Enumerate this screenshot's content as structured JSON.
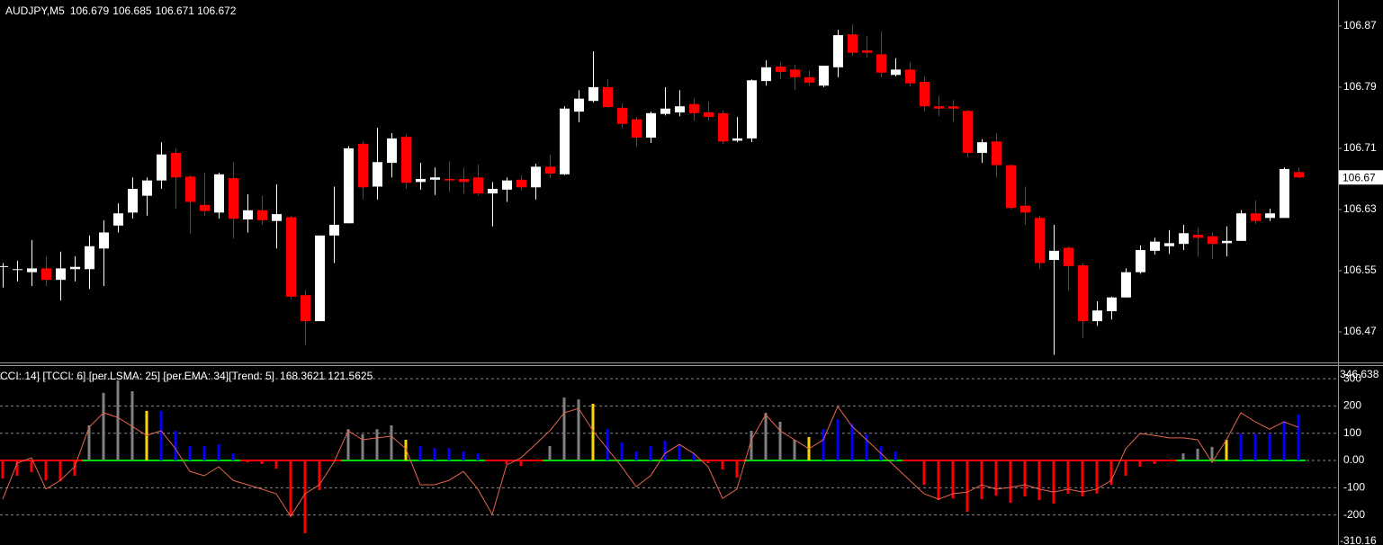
{
  "chart_data": [
    {
      "type": "candlestick",
      "title": "AUDJPY,M5",
      "open": [
        106.555,
        106.551,
        106.548,
        106.553,
        106.538,
        106.552,
        106.552,
        106.579,
        106.609,
        106.626,
        106.648,
        106.668,
        106.704,
        106.673,
        106.636,
        106.626,
        106.671,
        106.617,
        106.629,
        106.615,
        106.62,
        106.518,
        106.484,
        106.596,
        106.612,
        106.716,
        106.66,
        106.691,
        106.725,
        106.666,
        106.669,
        106.67,
        106.67,
        106.672,
        106.651,
        106.656,
        106.669,
        106.659,
        106.686,
        106.676,
        106.758,
        106.772,
        106.79,
        106.763,
        106.748,
        106.724,
        106.755,
        106.757,
        106.768,
        106.757,
        106.756,
        106.72,
        106.723,
        106.798,
        106.817,
        106.813,
        106.803,
        106.792,
        106.816,
        106.859,
        106.838,
        106.833,
        106.806,
        106.813,
        106.797,
        106.765,
        106.765,
        106.759,
        106.704,
        106.719,
        106.688,
        106.635,
        106.619,
        106.564,
        106.58,
        106.557,
        106.484,
        106.497,
        106.515,
        106.548,
        106.576,
        106.582,
        106.585,
        106.597,
        106.595,
        106.586,
        106.589,
        106.625,
        106.619,
        106.619,
        106.679
      ],
      "high": [
        106.56,
        106.563,
        106.59,
        106.569,
        106.575,
        106.569,
        106.596,
        106.616,
        106.638,
        106.672,
        106.672,
        106.718,
        106.71,
        106.675,
        106.678,
        106.678,
        106.692,
        106.65,
        106.648,
        106.663,
        106.622,
        106.525,
        106.596,
        106.66,
        106.713,
        106.719,
        106.737,
        106.73,
        106.728,
        106.691,
        106.685,
        106.693,
        106.685,
        106.689,
        106.666,
        106.672,
        106.675,
        106.69,
        106.702,
        106.765,
        106.786,
        106.837,
        106.8,
        106.769,
        106.751,
        106.758,
        106.79,
        106.786,
        106.775,
        106.771,
        106.759,
        106.751,
        106.8,
        106.825,
        106.823,
        106.819,
        106.812,
        106.818,
        106.865,
        106.872,
        106.857,
        106.863,
        106.828,
        106.823,
        106.804,
        106.779,
        106.773,
        106.76,
        106.722,
        106.73,
        106.689,
        106.66,
        106.622,
        106.61,
        106.582,
        106.56,
        106.51,
        106.516,
        106.553,
        106.583,
        106.593,
        106.603,
        106.61,
        106.606,
        106.6,
        106.608,
        106.629,
        106.642,
        106.631,
        106.685,
        106.685
      ],
      "low": [
        106.528,
        106.536,
        106.53,
        106.53,
        106.511,
        106.536,
        106.526,
        106.53,
        106.6,
        106.618,
        106.622,
        106.657,
        106.631,
        106.598,
        106.622,
        106.618,
        106.592,
        106.6,
        106.61,
        106.579,
        106.513,
        106.453,
        106.484,
        106.56,
        106.612,
        106.643,
        106.643,
        106.672,
        106.657,
        106.656,
        106.649,
        106.653,
        106.651,
        106.648,
        106.608,
        106.64,
        106.655,
        106.643,
        106.671,
        106.675,
        106.744,
        106.77,
        106.763,
        106.736,
        106.712,
        106.717,
        106.753,
        106.752,
        106.746,
        106.746,
        106.716,
        106.718,
        106.718,
        106.792,
        106.8,
        106.786,
        106.792,
        106.79,
        106.803,
        106.831,
        106.829,
        106.803,
        106.804,
        106.791,
        106.758,
        106.752,
        106.745,
        106.698,
        106.691,
        106.672,
        106.63,
        106.61,
        106.553,
        106.44,
        106.524,
        106.462,
        106.478,
        106.486,
        106.515,
        106.546,
        106.571,
        106.572,
        106.577,
        106.568,
        106.565,
        106.569,
        106.589,
        106.611,
        106.615,
        106.619,
        106.671
      ],
      "close": [
        106.556,
        106.552,
        106.553,
        106.538,
        106.553,
        106.555,
        106.582,
        106.6,
        106.625,
        106.657,
        106.668,
        106.702,
        106.672,
        106.64,
        106.628,
        106.676,
        106.618,
        106.629,
        106.616,
        106.624,
        106.516,
        106.484,
        106.596,
        106.61,
        106.71,
        106.659,
        106.692,
        106.723,
        106.665,
        106.67,
        106.672,
        106.668,
        106.666,
        106.651,
        106.657,
        106.668,
        106.659,
        106.686,
        106.677,
        106.762,
        106.775,
        106.79,
        106.764,
        106.742,
        106.724,
        106.756,
        106.762,
        106.765,
        106.756,
        106.751,
        106.719,
        106.723,
        106.799,
        106.816,
        106.81,
        106.803,
        106.796,
        106.818,
        106.858,
        106.835,
        106.835,
        106.809,
        106.813,
        106.795,
        106.765,
        106.762,
        106.762,
        106.704,
        106.718,
        106.688,
        106.632,
        106.626,
        106.56,
        106.576,
        106.556,
        106.484,
        106.498,
        106.515,
        106.548,
        106.577,
        106.588,
        106.586,
        106.599,
        106.593,
        106.585,
        106.589,
        106.625,
        106.615,
        106.625,
        106.683,
        106.672
      ],
      "up_color": "#ffffff",
      "down_color": "#ff0000",
      "ylim": [
        106.43,
        106.904
      ],
      "yticks": [
        106.47,
        106.55,
        106.63,
        106.71,
        106.79,
        106.87
      ],
      "last_price": {
        "value": 106.672,
        "label": "106.67"
      }
    },
    {
      "type": "oscillator",
      "title": "CCI: 14] [TCCI: 6] [per.LSMA: 25] [per.EMA: 34][Trend: 5]",
      "values": [
        -66,
        -56,
        -43,
        -73,
        -76,
        -56,
        129,
        248,
        294,
        254,
        182,
        182,
        109,
        53,
        53,
        59,
        26,
        -7,
        -13,
        -30,
        -205,
        -267,
        -109,
        0,
        115,
        96,
        115,
        129,
        76,
        53,
        46,
        46,
        33,
        26,
        0,
        -13,
        -20,
        0,
        53,
        231,
        224,
        208,
        115,
        66,
        33,
        53,
        73,
        59,
        26,
        -10,
        -33,
        -63,
        109,
        175,
        142,
        76,
        86,
        115,
        152,
        135,
        96,
        53,
        33,
        0,
        -89,
        -145,
        -139,
        -188,
        -142,
        -129,
        -155,
        -132,
        -145,
        -158,
        -122,
        -132,
        -122,
        -89,
        -56,
        -23,
        -13,
        0,
        26,
        43,
        50,
        76,
        99,
        99,
        99,
        145,
        168.3621
      ],
      "colors": [
        "#ff0000",
        "#ff0000",
        "#ff0000",
        "#ff0000",
        "#ff0000",
        "#ff0000",
        "#808080",
        "#808080",
        "#808080",
        "#808080",
        "#ffd700",
        "#0000ff",
        "#0000ff",
        "#0000ff",
        "#0000ff",
        "#0000ff",
        "#0000ff",
        "#ff0000",
        "#ff0000",
        "#ff0000",
        "#ff0000",
        "#ff0000",
        "#ff0000",
        "#ff0000",
        "#808080",
        "#808080",
        "#808080",
        "#808080",
        "#ffd700",
        "#0000ff",
        "#0000ff",
        "#0000ff",
        "#0000ff",
        "#0000ff",
        "#ff0000",
        "#ff0000",
        "#ff0000",
        "#ff0000",
        "#808080",
        "#808080",
        "#808080",
        "#ffd700",
        "#0000ff",
        "#0000ff",
        "#0000ff",
        "#0000ff",
        "#0000ff",
        "#0000ff",
        "#0000ff",
        "#ff0000",
        "#ff0000",
        "#ff0000",
        "#808080",
        "#808080",
        "#808080",
        "#808080",
        "#ffd700",
        "#0000ff",
        "#0000ff",
        "#0000ff",
        "#0000ff",
        "#0000ff",
        "#0000ff",
        "#ff0000",
        "#ff0000",
        "#ff0000",
        "#ff0000",
        "#ff0000",
        "#ff0000",
        "#ff0000",
        "#ff0000",
        "#ff0000",
        "#ff0000",
        "#ff0000",
        "#ff0000",
        "#ff0000",
        "#ff0000",
        "#ff0000",
        "#ff0000",
        "#ff0000",
        "#ff0000",
        "#ff0000",
        "#808080",
        "#808080",
        "#808080",
        "#ffd700",
        "#0000ff",
        "#0000ff",
        "#0000ff",
        "#0000ff",
        "#0000ff"
      ],
      "line": {
        "color": "#e5654f",
        "values": [
          -142,
          -10,
          10,
          -105,
          -73,
          -23,
          122,
          175,
          158,
          125,
          92,
          109,
          43,
          -40,
          -56,
          -23,
          -73,
          -89,
          -105,
          -122,
          -205,
          -122,
          -89,
          -7,
          109,
          76,
          83,
          89,
          43,
          -89,
          -89,
          -73,
          -40,
          -105,
          -198,
          -17,
          10,
          59,
          109,
          175,
          191,
          109,
          43,
          -23,
          -96,
          -56,
          26,
          59,
          26,
          -23,
          -139,
          -105,
          76,
          168,
          109,
          76,
          43,
          76,
          198,
          125,
          76,
          26,
          -23,
          -73,
          -122,
          -142,
          -122,
          -116,
          -89,
          -105,
          -99,
          -89,
          -105,
          -116,
          -105,
          -116,
          -105,
          -73,
          43,
          99,
          92,
          83,
          83,
          76,
          -7,
          76,
          175,
          142,
          115,
          142,
          121.5625
        ]
      },
      "trend_colors": [
        "#00e000",
        "#ff0000"
      ],
      "ylim": [
        -310.16,
        346.638
      ],
      "yticks": [
        300,
        200,
        100,
        {
          "value": 0,
          "label": "0.00"
        },
        -100,
        -200
      ],
      "grid": true,
      "grid_color": "#8a8a8a"
    }
  ]
}
